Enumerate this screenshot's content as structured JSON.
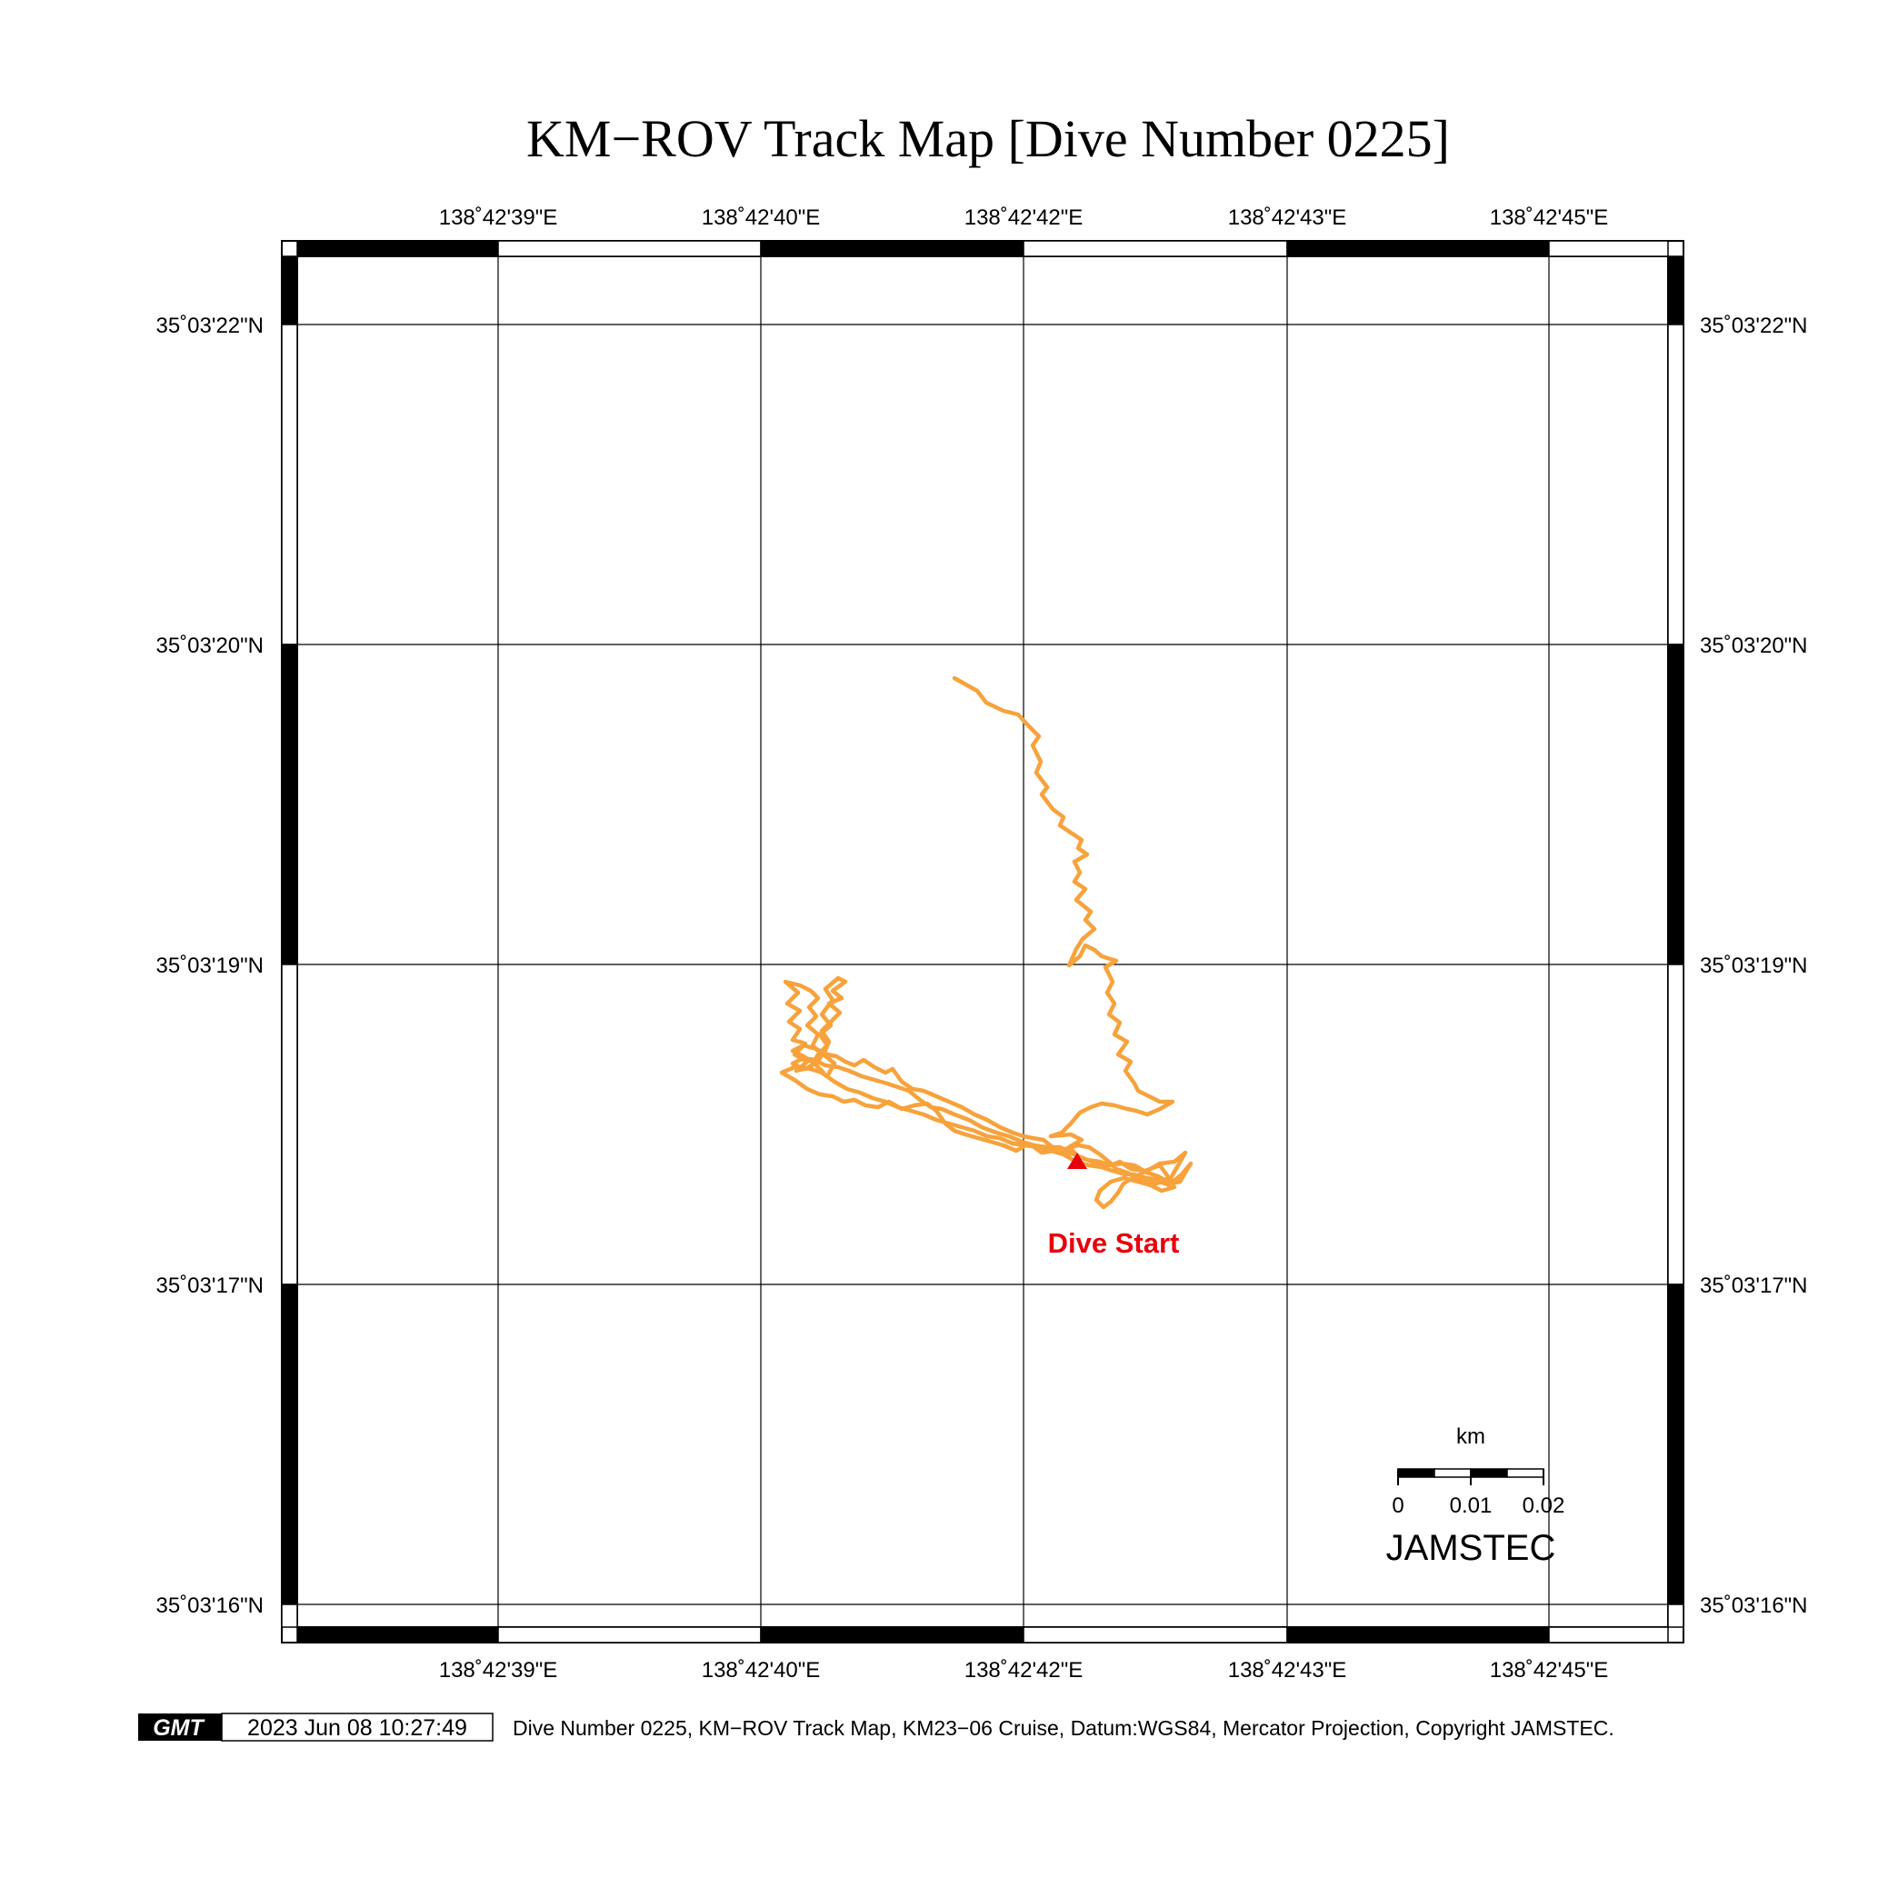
{
  "title": "KM−ROV Track Map [Dive Number 0225]",
  "map": {
    "lon_labels": [
      "138˚42'39\"E",
      "138˚42'40\"E",
      "138˚42'42\"E",
      "138˚42'43\"E",
      "138˚42'45\"E"
    ],
    "lat_labels": [
      "35˚03'22\"N",
      "35˚03'20\"N",
      "35˚03'19\"N",
      "35˚03'17\"N",
      "35˚03'16\"N"
    ],
    "track_color": "#f7a23b",
    "marker_color": "#e8000b",
    "marker_label": "Dive Start"
  },
  "scale_bar": {
    "unit": "km",
    "ticks": [
      "0",
      "0.01",
      "0.02"
    ],
    "credit": "JAMSTEC"
  },
  "footer": {
    "logo": "GMT",
    "timestamp": "2023 Jun 08 10:27:49",
    "caption": "Dive Number 0225, KM−ROV Track Map, KM23−06 Cruise, Datum:WGS84, Mercator Projection, Copyright JAMSTEC."
  }
}
